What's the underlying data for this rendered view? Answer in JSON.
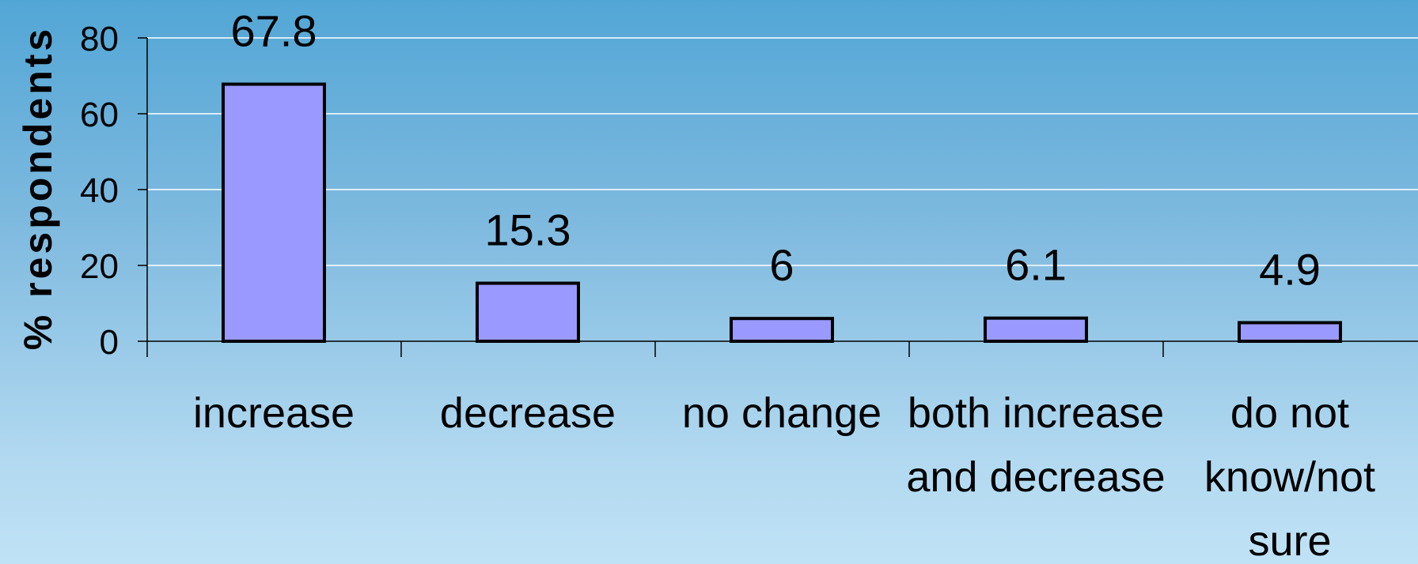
{
  "chart_data": {
    "type": "bar",
    "categories": [
      "increase",
      "decrease",
      "no change",
      "both increase and decrease",
      "do not know/not sure"
    ],
    "category_lines": [
      [
        "increase"
      ],
      [
        "decrease"
      ],
      [
        "no change"
      ],
      [
        "both increase",
        "and decrease"
      ],
      [
        "do not",
        "know/not",
        "sure"
      ]
    ],
    "values": [
      67.8,
      15.3,
      6,
      6.1,
      4.9
    ],
    "value_labels": [
      "67.8",
      "15.3",
      "6",
      "6.1",
      "4.9"
    ],
    "title": "",
    "xlabel": "",
    "ylabel": "% respondents",
    "ylim": [
      0,
      80
    ],
    "yticks": [
      "0",
      "20",
      "40",
      "60",
      "80"
    ],
    "grid": true,
    "bar_color": "#9999ff",
    "bar_edge_color": "#000000",
    "gridline_color": "#ffffff"
  }
}
